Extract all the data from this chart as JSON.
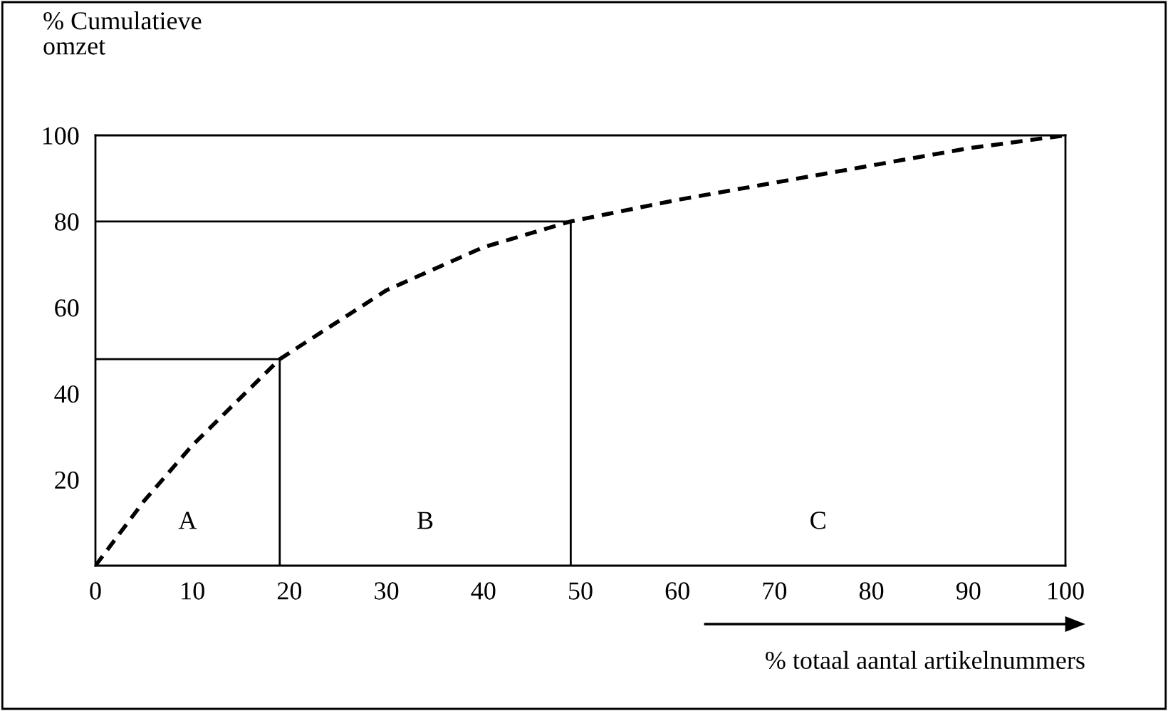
{
  "chart_data": {
    "type": "line",
    "ylabel": "% Cumulatieve\nomzet",
    "xlabel": "% totaal aantal artikelnummers",
    "series": [
      {
        "color": "#000000",
        "line_style": "dashed",
        "x": [
          0,
          5,
          10,
          19,
          30,
          40,
          49,
          60,
          70,
          80,
          90,
          100
        ],
        "values": [
          0,
          15,
          28,
          48,
          64,
          74,
          80,
          85,
          89,
          93,
          97,
          100
        ]
      },
      {
        "color": "#000000",
        "line_style": "solid",
        "x": [
          0,
          19,
          19
        ],
        "values": [
          48,
          48,
          0
        ]
      },
      {
        "color": "#000000",
        "line_style": "solid",
        "x": [
          0,
          49,
          49
        ],
        "values": [
          80,
          80,
          0
        ]
      }
    ],
    "annotations": [
      "A",
      "B",
      "C"
    ],
    "xlim": [
      0,
      100
    ],
    "xticks": [
      0,
      10,
      20,
      30,
      40,
      50,
      60,
      70,
      80,
      90,
      100
    ],
    "ylim": [
      0,
      100
    ],
    "yticks": [
      20,
      40,
      60,
      80,
      100
    ],
    "grid": false,
    "marker": "none"
  }
}
